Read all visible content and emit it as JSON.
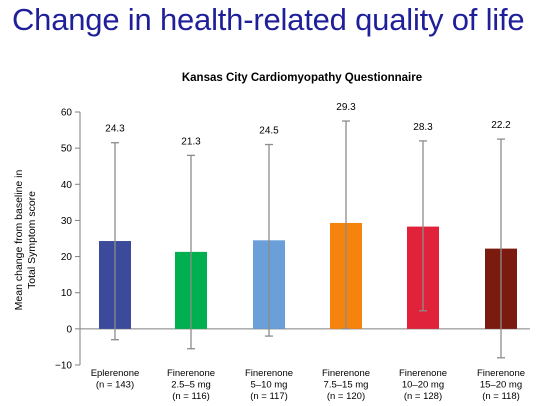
{
  "page": {
    "title": "Change in health-related quality of life"
  },
  "chart_data": {
    "type": "bar",
    "title": "Kansas City Cardiomyopathy Questionnaire",
    "ylabel_lines": [
      "Mean change from baseline in",
      "Total Symptom score"
    ],
    "xlabel": "",
    "ylim": [
      -10,
      60
    ],
    "yticks": [
      -10,
      0,
      10,
      20,
      30,
      40,
      50,
      60
    ],
    "grid": false,
    "categories": [
      [
        "Eplerenone",
        "(n = 143)"
      ],
      [
        "Finerenone",
        "2.5–5 mg",
        "(n = 116)"
      ],
      [
        "Finerenone",
        "5–10 mg",
        "(n = 117)"
      ],
      [
        "Finerenone",
        "7.5–15 mg",
        "(n = 120)"
      ],
      [
        "Finerenone",
        "10–20 mg",
        "(n = 128)"
      ],
      [
        "Finerenone",
        "15–20 mg",
        "(n = 118)"
      ]
    ],
    "values": [
      24.3,
      21.3,
      24.5,
      29.3,
      28.3,
      22.2
    ],
    "value_labels": [
      "24.3",
      "21.3",
      "24.5",
      "29.3",
      "28.3",
      "22.2"
    ],
    "error_upper": [
      51.5,
      48,
      51,
      57.5,
      52,
      52.5
    ],
    "error_lower": [
      -3,
      -5.5,
      -2,
      0,
      5,
      -8
    ],
    "colors": [
      "#3b4a9b",
      "#00b050",
      "#6a9fd9",
      "#f7830f",
      "#e0233a",
      "#7b1a0e"
    ],
    "error_color": "#8c8c8c"
  }
}
